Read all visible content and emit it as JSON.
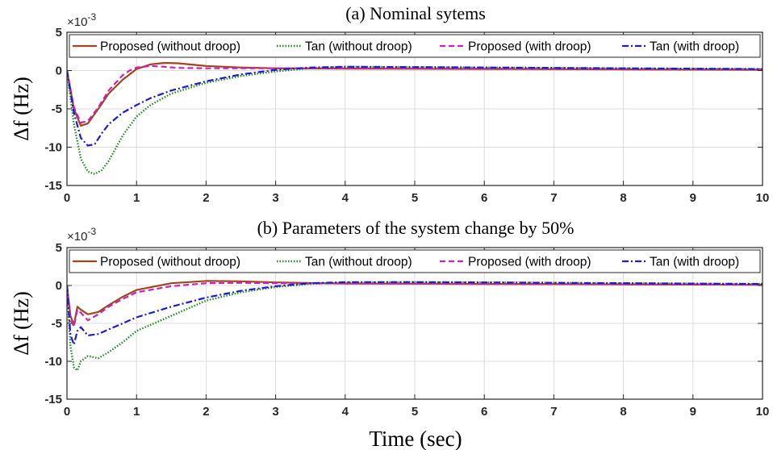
{
  "figure": {
    "xlabel": "Time (sec)",
    "colors": {
      "proposed_without_droop": "#A0451C",
      "tan_without_droop": "#1E8B1E",
      "proposed_with_droop": "#D021B8",
      "tan_with_droop": "#1C1CC8",
      "grid": "#dcdcdc",
      "axes": "#262626"
    }
  },
  "chart_data": [
    {
      "type": "line",
      "title": "(a) Nominal sytems",
      "xlabel": "",
      "ylabel": "Δf (Hz)",
      "y_exponent_label": "×10",
      "y_exponent_power": "-3",
      "xlim": [
        0,
        10
      ],
      "ylim": [
        -15,
        5
      ],
      "xticks": [
        "0",
        "1",
        "2",
        "3",
        "4",
        "5",
        "6",
        "7",
        "8",
        "9",
        "10"
      ],
      "yticks": [
        "5",
        "0",
        "-5",
        "-10",
        "-15"
      ],
      "grid": true,
      "legend_position": "top",
      "series": [
        {
          "name": "Proposed (without droop)",
          "x": [
            0,
            0.1,
            0.2,
            0.3,
            0.45,
            0.6,
            0.8,
            1.0,
            1.2,
            1.4,
            1.6,
            2.0,
            2.5,
            3.0,
            4.0,
            6.0,
            8.0,
            10.0
          ],
          "values": [
            0,
            -5.0,
            -7.2,
            -6.9,
            -5.0,
            -3.0,
            -1.2,
            0.2,
            0.8,
            1.0,
            0.95,
            0.6,
            0.4,
            0.3,
            0.25,
            0.2,
            0.15,
            0.1
          ]
        },
        {
          "name": "Tan (without droop)",
          "x": [
            0,
            0.1,
            0.2,
            0.3,
            0.4,
            0.5,
            0.6,
            0.8,
            1.0,
            1.2,
            1.5,
            2.0,
            2.5,
            3.0,
            3.5,
            4.0,
            5.0,
            6.0,
            8.0,
            10.0
          ],
          "values": [
            0,
            -7.0,
            -11.5,
            -13.2,
            -13.5,
            -13.0,
            -11.8,
            -8.5,
            -6.0,
            -4.5,
            -3.0,
            -1.6,
            -0.7,
            -0.1,
            0.3,
            0.5,
            0.45,
            0.4,
            0.3,
            0.2
          ]
        },
        {
          "name": "Proposed (with droop)",
          "x": [
            0,
            0.1,
            0.2,
            0.3,
            0.45,
            0.6,
            0.8,
            0.9,
            1.0,
            1.2,
            1.4,
            1.6,
            2.0,
            3.0,
            4.0,
            6.0,
            8.0,
            10.0
          ],
          "values": [
            0,
            -4.8,
            -6.8,
            -6.6,
            -4.8,
            -2.6,
            -0.6,
            0.0,
            0.4,
            0.6,
            0.5,
            0.35,
            0.3,
            0.3,
            0.3,
            0.25,
            0.2,
            0.15
          ]
        },
        {
          "name": "Tan (with droop)",
          "x": [
            0,
            0.1,
            0.2,
            0.3,
            0.4,
            0.5,
            0.6,
            0.8,
            1.0,
            1.2,
            1.5,
            2.0,
            2.5,
            3.0,
            3.5,
            4.0,
            5.0,
            6.0,
            8.0,
            10.0
          ],
          "values": [
            0,
            -5.5,
            -8.8,
            -9.8,
            -9.6,
            -8.2,
            -7.0,
            -5.5,
            -4.5,
            -3.6,
            -2.6,
            -1.4,
            -0.5,
            0.1,
            0.4,
            0.5,
            0.45,
            0.4,
            0.3,
            0.2
          ]
        }
      ]
    },
    {
      "type": "line",
      "title": "(b) Parameters of the system change by 50%",
      "xlabel": "Time (sec)",
      "ylabel": "Δf (Hz)",
      "y_exponent_label": "×10",
      "y_exponent_power": "-3",
      "xlim": [
        0,
        10
      ],
      "ylim": [
        -15,
        5
      ],
      "xticks": [
        "0",
        "1",
        "2",
        "3",
        "4",
        "5",
        "6",
        "7",
        "8",
        "9",
        "10"
      ],
      "yticks": [
        "5",
        "0",
        "-5",
        "-10",
        "-15"
      ],
      "grid": true,
      "legend_position": "top",
      "series": [
        {
          "name": "Proposed (without droop)",
          "x": [
            0,
            0.05,
            0.1,
            0.15,
            0.2,
            0.3,
            0.45,
            0.6,
            0.8,
            1.0,
            1.5,
            2.0,
            2.5,
            3.0,
            4.0,
            6.0,
            8.0,
            10.0
          ],
          "values": [
            0,
            -4.0,
            -5.2,
            -2.8,
            -3.2,
            -3.8,
            -3.5,
            -2.6,
            -1.5,
            -0.6,
            0.3,
            0.6,
            0.55,
            0.4,
            0.25,
            0.2,
            0.15,
            0.1
          ]
        },
        {
          "name": "Tan (without droop)",
          "x": [
            0,
            0.05,
            0.1,
            0.15,
            0.2,
            0.3,
            0.45,
            0.6,
            0.8,
            1.0,
            1.5,
            2.0,
            2.5,
            3.0,
            3.5,
            4.0,
            5.0,
            6.0,
            8.0,
            10.0
          ],
          "values": [
            0,
            -8.0,
            -10.8,
            -11.2,
            -10.0,
            -9.3,
            -9.6,
            -8.8,
            -7.5,
            -6.0,
            -4.0,
            -2.0,
            -0.9,
            -0.2,
            0.2,
            0.4,
            0.45,
            0.4,
            0.3,
            0.2
          ]
        },
        {
          "name": "Proposed (with droop)",
          "x": [
            0,
            0.05,
            0.1,
            0.15,
            0.2,
            0.3,
            0.45,
            0.6,
            0.8,
            1.0,
            1.5,
            2.0,
            2.5,
            3.0,
            4.0,
            6.0,
            8.0,
            10.0
          ],
          "values": [
            0,
            -4.5,
            -5.4,
            -3.2,
            -3.6,
            -4.6,
            -3.8,
            -2.8,
            -1.8,
            -0.9,
            -0.1,
            0.3,
            0.35,
            0.3,
            0.25,
            0.2,
            0.15,
            0.1
          ]
        },
        {
          "name": "Tan (with droop)",
          "x": [
            0,
            0.05,
            0.1,
            0.15,
            0.2,
            0.3,
            0.45,
            0.6,
            0.8,
            1.0,
            1.5,
            2.0,
            2.5,
            3.0,
            3.5,
            4.0,
            5.0,
            6.0,
            8.0,
            10.0
          ],
          "values": [
            0,
            -6.5,
            -7.8,
            -6.0,
            -5.5,
            -6.6,
            -6.4,
            -5.8,
            -5.0,
            -4.2,
            -2.8,
            -1.6,
            -0.7,
            -0.1,
            0.3,
            0.45,
            0.45,
            0.4,
            0.3,
            0.2
          ]
        }
      ]
    }
  ]
}
